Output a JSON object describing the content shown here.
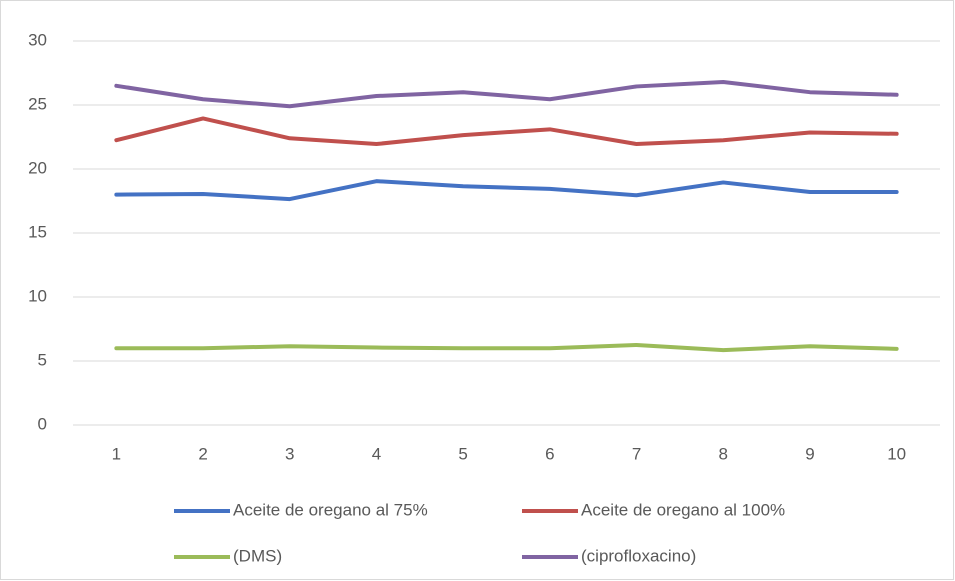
{
  "chart_data": {
    "type": "line",
    "categories": [
      1,
      2,
      3,
      4,
      5,
      6,
      7,
      8,
      9,
      10
    ],
    "series": [
      {
        "name": "Aceite de oregano al 75%",
        "color": "#4472c4",
        "values": [
          18.0,
          18.05,
          17.65,
          19.05,
          18.65,
          18.45,
          17.95,
          18.95,
          18.2,
          18.2
        ]
      },
      {
        "name": "Aceite de oregano al 100%",
        "color": "#c0504d",
        "values": [
          22.25,
          23.95,
          22.4,
          21.95,
          22.65,
          23.1,
          21.95,
          22.25,
          22.85,
          22.75
        ]
      },
      {
        "name": "(DMS)",
        "color": "#9bbb59",
        "values": [
          6.0,
          6.0,
          6.15,
          6.05,
          6.0,
          6.0,
          6.25,
          5.85,
          6.15,
          5.95
        ]
      },
      {
        "name": "(ciprofloxacino)",
        "color": "#8064a2",
        "values": [
          26.5,
          25.45,
          24.9,
          25.7,
          26.0,
          25.45,
          26.45,
          26.8,
          26.0,
          25.8
        ]
      }
    ],
    "ylim": [
      0,
      30
    ],
    "yticks": [
      0,
      5,
      10,
      15,
      20,
      25,
      30
    ],
    "grid": true,
    "legend": "bottom"
  }
}
